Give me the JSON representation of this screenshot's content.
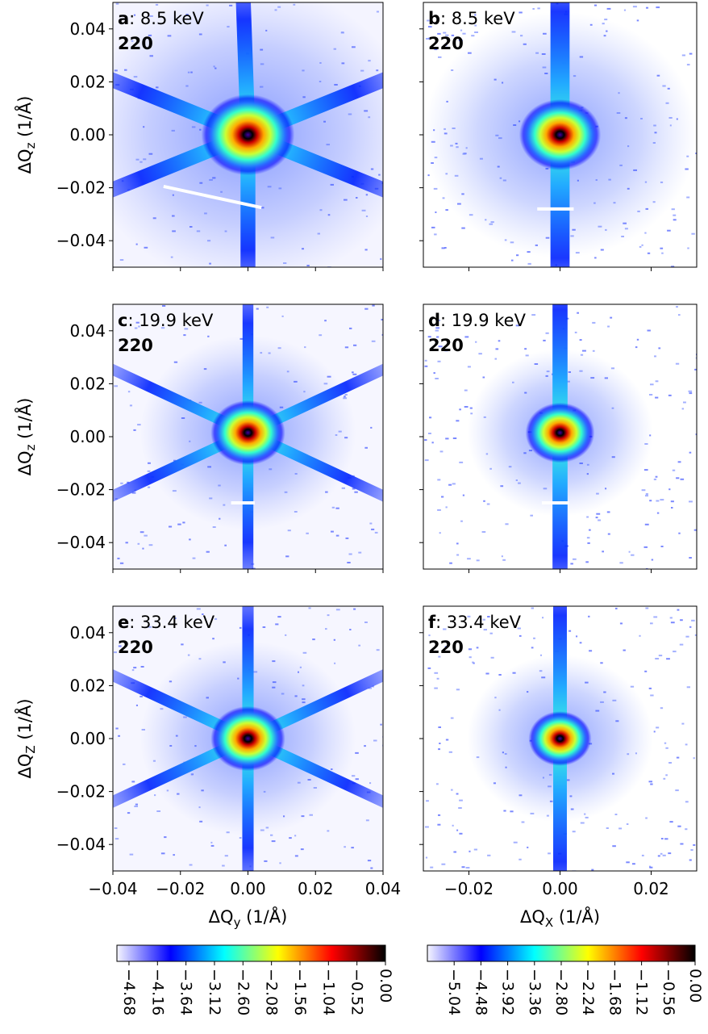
{
  "chart_data": [
    {
      "type": "heatmap",
      "panel_letter": "a",
      "energy": ": 8.5 keV",
      "reflection": "220",
      "x_ticks": [
        -0.04,
        -0.02,
        0.0,
        0.02,
        0.04
      ],
      "x_tick_labels": [
        "",
        "",
        "",
        "",
        ""
      ],
      "xlabel": "",
      "y_ticks": [
        0.04,
        0.02,
        0.0,
        -0.02,
        -0.04
      ],
      "y_tick_labels": [
        "0.04",
        "0.02",
        "0.00",
        "−0.02",
        "−0.04"
      ],
      "ylabel": "ΔQ",
      "ylabel_sub": "z",
      "ylabel_unit": " (1/Å)",
      "xlim": [
        -0.04,
        0.04
      ],
      "ylim": [
        -0.05,
        0.05
      ],
      "center": [
        0.0,
        0.0
      ],
      "arm_angles_deg": [
        92,
        270,
        158,
        338,
        22,
        202
      ],
      "gap_line": {
        "x_from": -0.025,
        "x_to": 0.004,
        "y_from": -0.0195,
        "y_to": -0.0275
      }
    },
    {
      "type": "heatmap",
      "panel_letter": "b",
      "energy": ": 8.5 keV",
      "reflection": "220",
      "x_ticks": [
        -0.02,
        0.0,
        0.02
      ],
      "x_tick_labels": [
        "",
        "",
        ""
      ],
      "xlabel": "",
      "y_ticks": [
        0.04,
        0.02,
        0.0,
        -0.02,
        -0.04
      ],
      "y_tick_labels": [
        "",
        "",
        "",
        "",
        ""
      ],
      "xlim": [
        -0.03,
        0.03
      ],
      "ylim": [
        -0.05,
        0.05
      ],
      "center": [
        0.0,
        0.0
      ],
      "arm_angles_deg": [
        90,
        270
      ],
      "gap_line": {
        "x_from": -0.005,
        "x_to": 0.003,
        "y_from": -0.028,
        "y_to": -0.028
      }
    },
    {
      "type": "heatmap",
      "panel_letter": "c",
      "energy": ": 19.9 keV",
      "reflection": "220",
      "x_ticks": [
        -0.04,
        -0.02,
        0.0,
        0.02,
        0.04
      ],
      "x_tick_labels": [
        "",
        "",
        "",
        "",
        ""
      ],
      "xlabel": "",
      "y_ticks": [
        0.04,
        0.02,
        0.0,
        -0.02,
        -0.04
      ],
      "y_tick_labels": [
        "0.04",
        "0.02",
        "0.00",
        "−0.02",
        "−0.04"
      ],
      "ylabel": "ΔQ",
      "ylabel_sub": "z",
      "ylabel_unit": " (1/Å)",
      "xlim": [
        -0.04,
        0.04
      ],
      "ylim": [
        -0.05,
        0.05
      ],
      "center": [
        0.0,
        0.0015
      ],
      "arm_angles_deg": [
        90,
        270,
        155,
        335,
        25,
        205
      ],
      "gap_line": {
        "x_from": -0.005,
        "x_to": 0.002,
        "y_from": -0.025,
        "y_to": -0.025
      }
    },
    {
      "type": "heatmap",
      "panel_letter": "d",
      "energy": ": 19.9 keV",
      "reflection": "220",
      "x_ticks": [
        -0.02,
        0.0,
        0.02
      ],
      "x_tick_labels": [
        "",
        "",
        ""
      ],
      "xlabel": "",
      "y_ticks": [
        0.04,
        0.02,
        0.0,
        -0.02,
        -0.04
      ],
      "y_tick_labels": [
        "",
        "",
        "",
        "",
        ""
      ],
      "xlim": [
        -0.03,
        0.03
      ],
      "ylim": [
        -0.05,
        0.05
      ],
      "center": [
        0.0,
        0.0015
      ],
      "arm_angles_deg": [
        90,
        270
      ],
      "gap_line": {
        "x_from": -0.004,
        "x_to": 0.002,
        "y_from": -0.025,
        "y_to": -0.025
      }
    },
    {
      "type": "heatmap",
      "panel_letter": "e",
      "energy": ": 33.4 keV",
      "reflection": "220",
      "x_ticks": [
        -0.04,
        -0.02,
        0.0,
        0.02,
        0.04
      ],
      "x_tick_labels": [
        "−0.04",
        "−0.02",
        "0.00",
        "0.02",
        "0.04"
      ],
      "xlabel": "ΔQ",
      "xlabel_sub": "y",
      "xlabel_unit": " (1/Å)",
      "y_ticks": [
        0.04,
        0.02,
        0.0,
        -0.02,
        -0.04
      ],
      "y_tick_labels": [
        "0.04",
        "0.02",
        "0.00",
        "−0.02",
        "−0.04"
      ],
      "ylabel": "ΔQ",
      "ylabel_sub": "Z",
      "ylabel_unit": " (1/Å)",
      "xlim": [
        -0.04,
        0.04
      ],
      "ylim": [
        -0.05,
        0.05
      ],
      "center": [
        0.0,
        0.0
      ],
      "arm_angles_deg": [
        90,
        270,
        155,
        335,
        25,
        205
      ]
    },
    {
      "type": "heatmap",
      "panel_letter": "f",
      "energy": ": 33.4 keV",
      "reflection": "220",
      "x_ticks": [
        -0.02,
        0.0,
        0.02
      ],
      "x_tick_labels": [
        "−0.02",
        "0.00",
        "0.02"
      ],
      "xlabel": "ΔQ",
      "xlabel_sub": "X",
      "xlabel_unit": " (1/Å)",
      "y_ticks": [
        0.04,
        0.02,
        0.0,
        -0.02,
        -0.04
      ],
      "y_tick_labels": [
        "",
        "",
        "",
        "",
        ""
      ],
      "xlim": [
        -0.03,
        0.03
      ],
      "ylim": [
        -0.05,
        0.05
      ],
      "center": [
        0.0,
        0.0
      ],
      "arm_angles_deg": [
        90,
        270
      ]
    }
  ],
  "colorbars": [
    {
      "orientation": "horizontal",
      "range": [
        -4.9,
        0.0
      ],
      "ticks": [
        -4.68,
        -4.16,
        -3.64,
        -3.12,
        -2.6,
        -2.08,
        -1.56,
        -1.04,
        -0.52,
        0.0
      ],
      "tick_labels": [
        "−4.68",
        "−4.16",
        "−3.64",
        "−3.12",
        "−2.60",
        "−2.08",
        "−1.56",
        "−1.04",
        "−0.52",
        "0.00"
      ]
    },
    {
      "orientation": "horizontal",
      "range": [
        -5.6,
        0.0
      ],
      "ticks": [
        -5.04,
        -4.48,
        -3.92,
        -3.36,
        -2.8,
        -2.24,
        -1.68,
        -1.12,
        -0.56,
        0.0
      ],
      "tick_labels": [
        "−5.04",
        "−4.48",
        "−3.92",
        "−3.36",
        "−2.80",
        "−2.24",
        "−1.68",
        "−1.12",
        "−0.56",
        "0.00"
      ]
    }
  ],
  "colormap": [
    "#f6f6ff",
    "#0000ff",
    "#00ffff",
    "#ffff00",
    "#ff0000",
    "#000000"
  ]
}
